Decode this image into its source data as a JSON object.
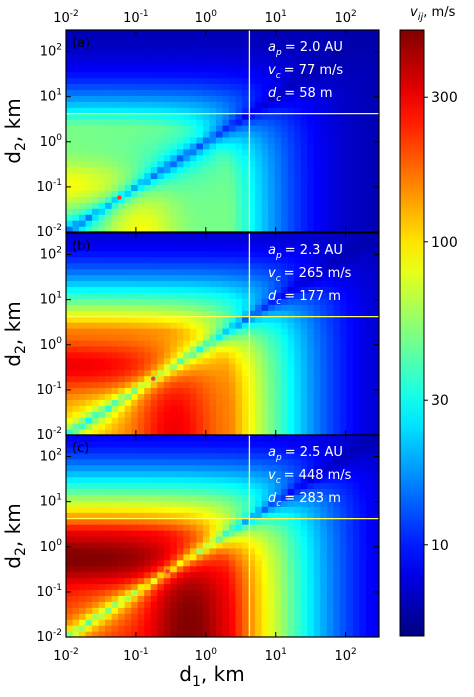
{
  "chart_data": {
    "type": "heatmap",
    "x_axis": {
      "label_base": "d",
      "label_sub": "1",
      "label_unit": ", km",
      "scale": "log",
      "range": [
        0.01,
        300
      ],
      "tick_labels": [
        "10",
        "10",
        "10",
        "10",
        "10"
      ],
      "tick_exponents": [
        "-2",
        "-1",
        "0",
        "1",
        "2"
      ],
      "tick_values": [
        0.01,
        0.1,
        1,
        10,
        100
      ]
    },
    "y_axis": {
      "label_base": "d",
      "label_sub": "2",
      "label_unit": ", km",
      "scale": "log",
      "range": [
        0.01,
        300
      ],
      "tick_labels": [
        "10",
        "10",
        "10",
        "10",
        "10"
      ],
      "tick_exponents": [
        "-2",
        "-1",
        "0",
        "1",
        "2"
      ],
      "tick_values": [
        0.01,
        0.1,
        1,
        10,
        100
      ]
    },
    "colorbar": {
      "label": "v",
      "label_sub": "ij",
      "label_unit": ", m/s",
      "scale": "log",
      "range": [
        5,
        500
      ],
      "ticks": [
        10,
        30,
        100,
        300
      ],
      "tick_labels": [
        "10",
        "30",
        "100",
        "300"
      ],
      "colormap": "jet"
    },
    "guide_line": {
      "d1": 4.2,
      "d2": 4.2,
      "color": "#ffff55"
    },
    "panels": [
      {
        "label": "(a)",
        "ap_label": "a",
        "ap_sub": "p",
        "ap_value": "= 2.0 AU",
        "vc_label": "v",
        "vc_sub": "c",
        "vc_value": "=  77 m/s",
        "dc_label": "d",
        "dc_sub": "c",
        "dc_value": "=  58 m",
        "vc": 77,
        "dc_m": 58,
        "marker": {
          "d1": 0.058,
          "d2": 0.058,
          "color": "#ff3333"
        }
      },
      {
        "label": "(b)",
        "ap_label": "a",
        "ap_sub": "p",
        "ap_value": "= 2.3 AU",
        "vc_label": "v",
        "vc_sub": "c",
        "vc_value": "=  265 m/s",
        "dc_label": "d",
        "dc_sub": "c",
        "dc_value": "=  177 m",
        "vc": 265,
        "dc_m": 177,
        "marker": {
          "d1": 0.177,
          "d2": 0.177,
          "color": "#ff3333"
        }
      },
      {
        "label": "(c)",
        "ap_label": "a",
        "ap_sub": "p",
        "ap_value": "= 2.5 AU",
        "vc_label": "v",
        "vc_sub": "c",
        "vc_value": "=  448 m/s",
        "dc_label": "d",
        "dc_sub": "c",
        "dc_value": "=  283 m",
        "vc": 448,
        "dc_m": 283,
        "marker": {
          "d1": 0.283,
          "d2": 0.283,
          "color": "#ff3333"
        }
      }
    ]
  }
}
